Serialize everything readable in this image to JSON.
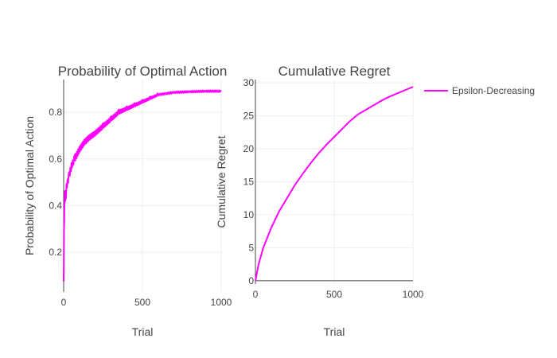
{
  "colors": {
    "series": "#ff00ff",
    "grid": "#eeeeee",
    "axis": "#444444"
  },
  "legend": {
    "placement": "top-right",
    "label": "Epsilon-Decreasing"
  },
  "chart_data": [
    {
      "type": "line",
      "title": "Probability of Optimal Action",
      "xlabel": "Trial",
      "ylabel": "Probability of Optimal Action",
      "xlim": [
        0,
        1000
      ],
      "ylim": [
        0.03,
        0.94
      ],
      "xticks": [
        0,
        500,
        1000
      ],
      "yticks": [
        0.2,
        0.4,
        0.6,
        0.8
      ],
      "xtick_labels": [
        "0",
        "500",
        "1000"
      ],
      "ytick_labels": [
        "0.2",
        "0.4",
        "0.6",
        "0.8"
      ],
      "grid": true,
      "series": [
        {
          "name": "Epsilon-Decreasing",
          "x": [
            0,
            2,
            5,
            8,
            12,
            18,
            25,
            35,
            50,
            70,
            100,
            130,
            160,
            200,
            250,
            300,
            350,
            400,
            450,
            500,
            550,
            600,
            650,
            700,
            800,
            900,
            1000
          ],
          "y": [
            0.06,
            0.28,
            0.4,
            0.45,
            0.42,
            0.48,
            0.5,
            0.53,
            0.57,
            0.6,
            0.64,
            0.67,
            0.69,
            0.71,
            0.74,
            0.77,
            0.8,
            0.815,
            0.83,
            0.845,
            0.86,
            0.875,
            0.88,
            0.885,
            0.888,
            0.89,
            0.89
          ]
        }
      ]
    },
    {
      "type": "line",
      "title": "Cumulative Regret",
      "xlabel": "Trial",
      "ylabel": "Cumulative Regret",
      "xlim": [
        0,
        1000
      ],
      "ylim": [
        -0.5,
        30.5
      ],
      "xticks": [
        0,
        500,
        1000
      ],
      "yticks": [
        0,
        5,
        10,
        15,
        20,
        25,
        30
      ],
      "xtick_labels": [
        "0",
        "500",
        "1000"
      ],
      "ytick_labels": [
        "0",
        "5",
        "10",
        "15",
        "20",
        "25",
        "30"
      ],
      "grid": true,
      "series": [
        {
          "name": "Epsilon-Decreasing",
          "x": [
            0,
            20,
            50,
            100,
            150,
            200,
            250,
            300,
            350,
            400,
            450,
            500,
            550,
            600,
            650,
            700,
            750,
            800,
            850,
            900,
            950,
            1000
          ],
          "y": [
            0,
            2.5,
            5,
            8,
            10.5,
            12.5,
            14.5,
            16.2,
            17.8,
            19.3,
            20.6,
            21.8,
            23,
            24.2,
            25.2,
            25.9,
            26.6,
            27.3,
            27.9,
            28.4,
            28.9,
            29.4
          ]
        }
      ]
    }
  ]
}
